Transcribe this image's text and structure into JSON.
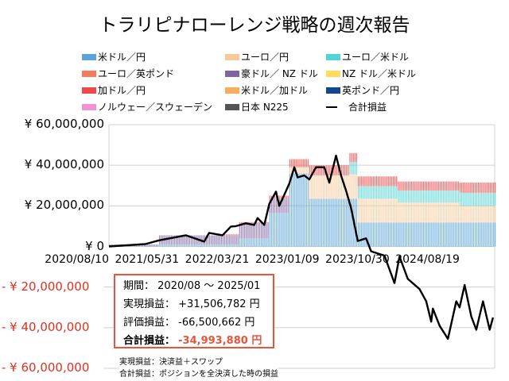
{
  "chart_data": {
    "type": "bar",
    "title": "トラリピナローレンジ戦略の週次報告",
    "ylim": [
      -60000000,
      60000000
    ],
    "y_ticks": [
      {
        "value": 60000000,
        "label": "¥ 60,000,000"
      },
      {
        "value": 40000000,
        "label": "¥ 40,000,000"
      },
      {
        "value": 20000000,
        "label": "¥ 20,000,000"
      },
      {
        "value": 0,
        "label": "¥ 0"
      },
      {
        "value": -20000000,
        "label": "- ¥ 20,000,000"
      },
      {
        "value": -40000000,
        "label": "- ¥ 40,000,000"
      },
      {
        "value": -60000000,
        "label": "- ¥ 60,000,000"
      }
    ],
    "x_range": [
      "2020/08/10",
      "2025/01/13"
    ],
    "x_ticks": [
      "2020/08/10",
      "2021/05/31",
      "2022/03/21",
      "2023/01/09",
      "2023/10/30",
      "2024/08/19"
    ],
    "grid": true,
    "legend_position": "top",
    "series": [
      {
        "key": "usd_jpy",
        "name": "米ドル／円",
        "color": "#5ba3d9"
      },
      {
        "key": "eur_jpy",
        "name": "ユーロ／円",
        "color": "#f9c99a"
      },
      {
        "key": "eur_usd",
        "name": "ユーロ／米ドル",
        "color": "#52d4d4"
      },
      {
        "key": "eur_gbp",
        "name": "ユーロ／英ポンド",
        "color": "#f77b5b"
      },
      {
        "key": "aud_nzd",
        "name": "豪ドル／ NZ ドル",
        "color": "#8064a2"
      },
      {
        "key": "nzd_usd",
        "name": "NZ ドル／米ドル",
        "color": "#ffdc5a"
      },
      {
        "key": "cad_jpy",
        "name": "加ドル／円",
        "color": "#f04848"
      },
      {
        "key": "usd_cad",
        "name": "米ドル／加ドル",
        "color": "#f9ad5b"
      },
      {
        "key": "gbp_jpy",
        "name": "英ポンド／円",
        "color": "#17468a"
      },
      {
        "key": "nok_sek",
        "name": "ノルウェー／スウェーデン",
        "color": "#f490d6"
      },
      {
        "key": "n225",
        "name": "日本 N225",
        "color": "#555555"
      }
    ],
    "stack_periods": [
      {
        "start": "2020/08/10",
        "usd_jpy": 0,
        "aud_nzd": 1000000
      },
      {
        "start": "2021/03/08",
        "usd_jpy": 1000000,
        "aud_nzd": 4500000
      },
      {
        "start": "2021/11/29",
        "usd_jpy": 1000000,
        "aud_nzd": 4500000,
        "cad_jpy": 500000
      },
      {
        "start": "2022/02/07",
        "usd_jpy": 4000000,
        "aud_nzd": 7500000,
        "cad_jpy": 500000
      },
      {
        "start": "2022/06/13",
        "usd_jpy": 16500000,
        "aud_nzd": 7000000,
        "cad_jpy": 1500000
      },
      {
        "start": "2022/09/05",
        "usd_jpy": 36000000,
        "eur_jpy": 3000000,
        "cad_jpy": 4000000
      },
      {
        "start": "2022/11/28",
        "usd_jpy": 23500000,
        "eur_jpy": 11500000,
        "cad_jpy": 5000000
      },
      {
        "start": "2023/05/15",
        "usd_jpy": 23500000,
        "eur_jpy": 12000000,
        "eur_usd": 6000000,
        "cad_jpy": 4500000
      },
      {
        "start": "2023/06/19",
        "usd_jpy": 11800000,
        "eur_jpy": 11700000,
        "eur_usd": 6200000,
        "cad_jpy": 4800000
      },
      {
        "start": "2023/12/04",
        "usd_jpy": 11800000,
        "eur_jpy": 9800000,
        "eur_usd": 5900000,
        "cad_jpy": 4500000
      },
      {
        "start": "2024/08/19",
        "usd_jpy": 11800000,
        "eur_jpy": 8100000,
        "eur_usd": 6500000,
        "cad_jpy": 5100000
      }
    ],
    "total_line": {
      "name": "合計損益",
      "color": "#000000",
      "points": [
        [
          "2020/08/10",
          0
        ],
        [
          "2021/01/11",
          1200000
        ],
        [
          "2021/03/08",
          3000000
        ],
        [
          "2021/06/28",
          5500000
        ],
        [
          "2021/09/13",
          2400000
        ],
        [
          "2021/10/04",
          6700000
        ],
        [
          "2021/11/29",
          5500000
        ],
        [
          "2022/01/03",
          9800000
        ],
        [
          "2022/01/24",
          10000000
        ],
        [
          "2022/03/07",
          11400000
        ],
        [
          "2022/04/11",
          10600000
        ],
        [
          "2022/04/25",
          14000000
        ],
        [
          "2022/05/23",
          10600000
        ],
        [
          "2022/06/13",
          21000000
        ],
        [
          "2022/07/11",
          27000000
        ],
        [
          "2022/07/25",
          20000000
        ],
        [
          "2022/09/05",
          31000000
        ],
        [
          "2022/09/26",
          39000000
        ],
        [
          "2022/10/10",
          34000000
        ],
        [
          "2022/11/07",
          35000000
        ],
        [
          "2022/11/28",
          33000000
        ],
        [
          "2022/12/26",
          39000000
        ],
        [
          "2023/01/30",
          39000000
        ],
        [
          "2023/02/20",
          31400000
        ],
        [
          "2023/03/20",
          44700000
        ],
        [
          "2023/04/10",
          35000000
        ],
        [
          "2023/05/01",
          27500000
        ],
        [
          "2023/05/22",
          19000000
        ],
        [
          "2023/06/19",
          2700000
        ],
        [
          "2023/07/24",
          4000000
        ],
        [
          "2023/08/14",
          -2400000
        ],
        [
          "2023/10/09",
          -4500000
        ],
        [
          "2023/11/20",
          -18000000
        ],
        [
          "2023/12/11",
          -5000000
        ],
        [
          "2024/01/15",
          -16000000
        ],
        [
          "2024/03/04",
          -21000000
        ],
        [
          "2024/04/01",
          -27000000
        ],
        [
          "2024/04/22",
          -37000000
        ],
        [
          "2024/04/29",
          -30600000
        ],
        [
          "2024/05/27",
          -39000000
        ],
        [
          "2024/07/01",
          -45500000
        ],
        [
          "2024/08/05",
          -27000000
        ],
        [
          "2024/08/19",
          -30000000
        ],
        [
          "2024/09/09",
          -19000000
        ],
        [
          "2024/10/07",
          -34500000
        ],
        [
          "2024/10/28",
          -41000000
        ],
        [
          "2024/11/25",
          -27000000
        ],
        [
          "2024/12/23",
          -41000000
        ],
        [
          "2025/01/06",
          -35000000
        ]
      ]
    }
  },
  "summary": {
    "period_label": "期間：",
    "period_value": "2020/08 ～ 2025/01",
    "realized_label": "実現損益：",
    "realized_value": "+31,506,782 円",
    "unrealized_label": "評価損益：",
    "unrealized_value": "-66,500,662 円",
    "total_label": "合計損益：",
    "total_value": "-34,993,880 円",
    "total_color": "#e8553a"
  },
  "notes": [
    "実現損益：決済益＋スワップ",
    "合計損益：ポジションを全決済した時の損益"
  ]
}
